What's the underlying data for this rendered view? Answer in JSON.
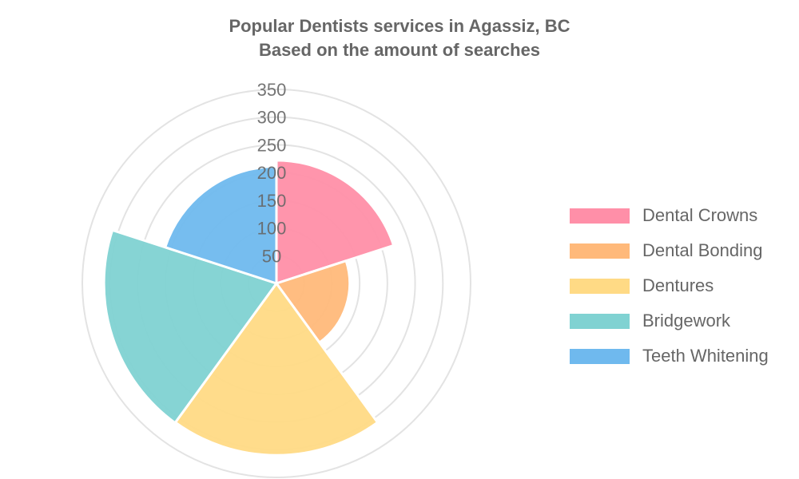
{
  "title": "Popular Dentists services in Agassiz, BC",
  "subtitle": "Based on the amount of searches",
  "chart_data": {
    "type": "polar-area",
    "title": "Popular Dentists services in Agassiz, BC",
    "subtitle": "Based on the amount of searches",
    "categories": [
      "Dental Crowns",
      "Dental Bonding",
      "Dentures",
      "Bridgework",
      "Teeth Whitening"
    ],
    "values": [
      222,
      132,
      310,
      311,
      211
    ],
    "colors": [
      "#ff8fa8",
      "#ffb97a",
      "#ffda85",
      "#80d2d2",
      "#6fb9ee"
    ],
    "radial_ticks": [
      "50",
      "100",
      "150",
      "200",
      "250",
      "300",
      "350"
    ],
    "rmax": 350,
    "grid": true,
    "legend_position": "right"
  }
}
